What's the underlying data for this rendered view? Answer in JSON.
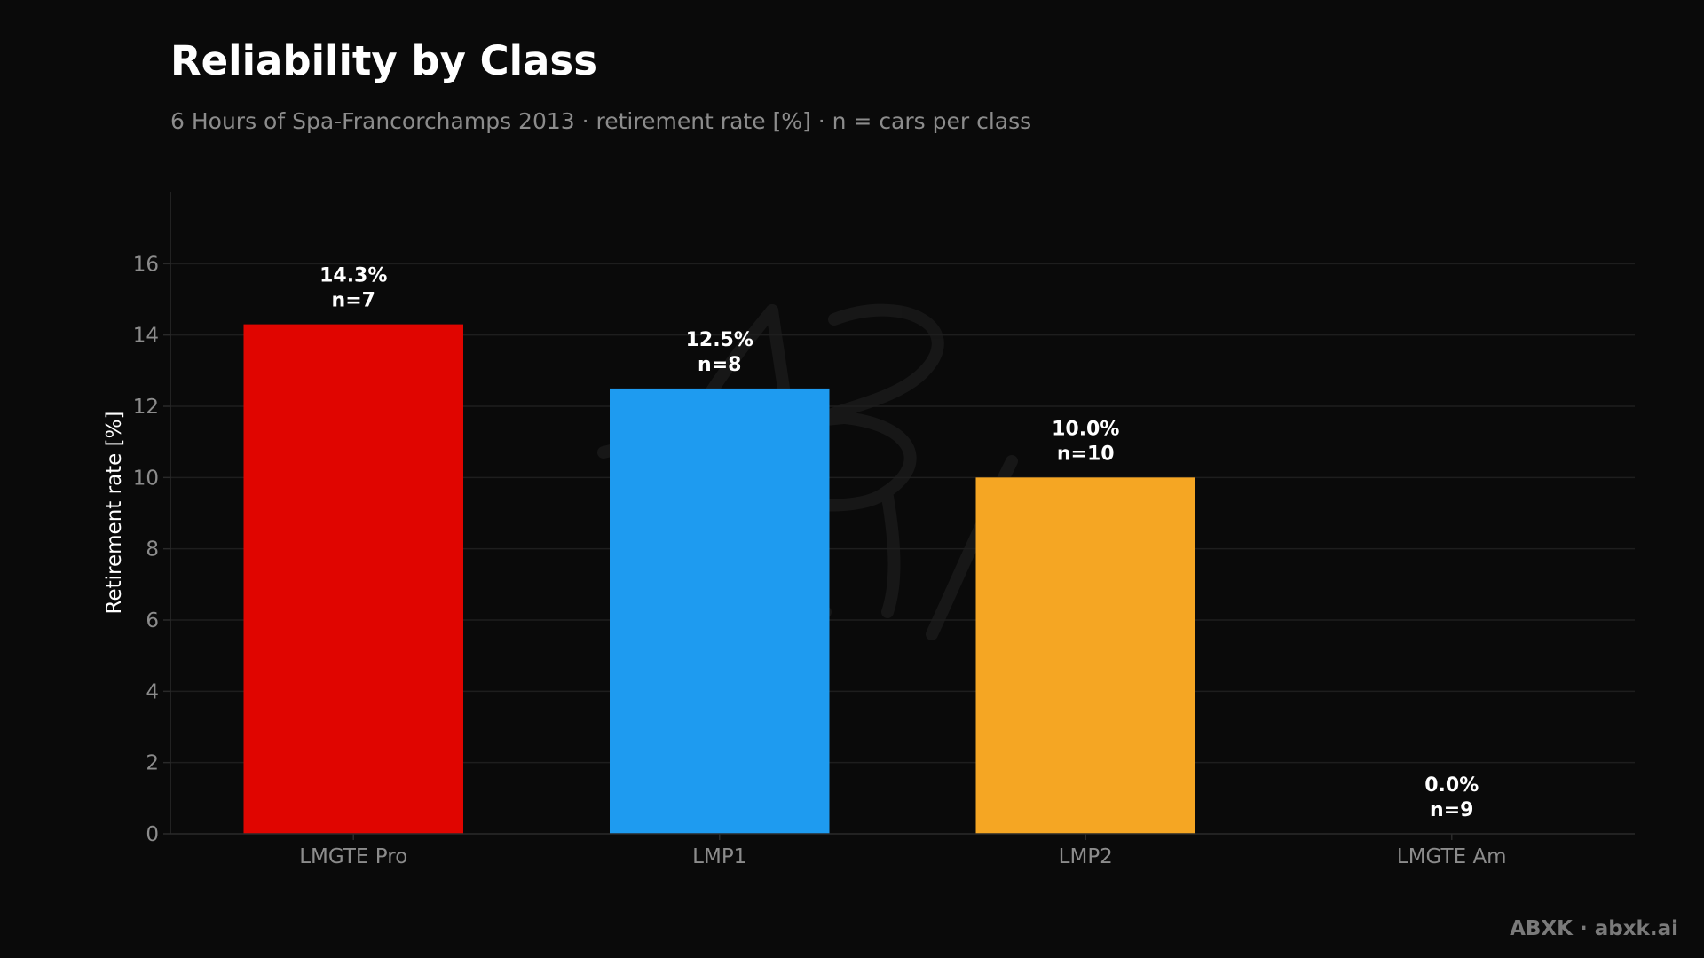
{
  "colors": {
    "background": "#0a0a0a",
    "grid": "#1e1e1e",
    "axis": "#2a2a2a",
    "tick_text": "#8c8c8c",
    "label_text": "#ffffff"
  },
  "chart_data": {
    "type": "bar",
    "title": "Reliability by Class",
    "subtitle": "6 Hours of Spa-Francorchamps 2013 · retirement rate [%] · n = cars per class",
    "xlabel": "",
    "ylabel": "Retirement rate [%]",
    "ylim": [
      0,
      18
    ],
    "yticks": [
      0,
      2,
      4,
      6,
      8,
      10,
      12,
      14,
      16
    ],
    "grid": true,
    "categories": [
      "LMGTE Pro",
      "LMP1",
      "LMP2",
      "LMGTE Am"
    ],
    "values": [
      14.3,
      12.5,
      10.0,
      0.0
    ],
    "n": [
      7,
      8,
      10,
      9
    ],
    "value_labels": [
      "14.3%",
      "12.5%",
      "10.0%",
      "0.0%"
    ],
    "n_labels": [
      "n=7",
      "n=8",
      "n=10",
      "n=9"
    ],
    "bar_colors": [
      "#e00500",
      "#1e9bf0",
      "#f5a623",
      "#888888"
    ]
  },
  "watermark": "ABXK · abxk.ai"
}
